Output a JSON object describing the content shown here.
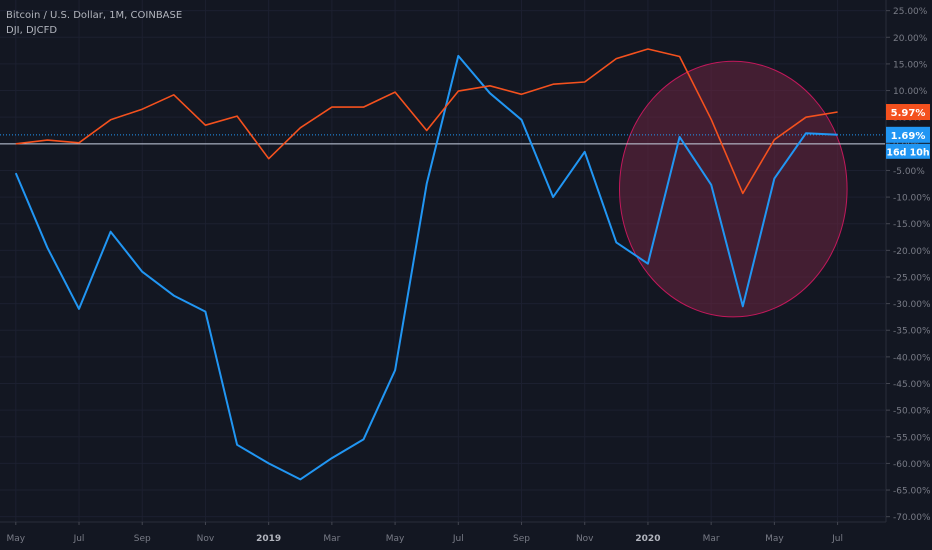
{
  "legend": {
    "line1": "Bitcoin / U.S. Dollar, 1M, COINBASE",
    "line2": "DJI, DJCFD"
  },
  "chart_data": {
    "type": "line",
    "x_labels": [
      "May",
      "Jul",
      "Sep",
      "Nov",
      "2019",
      "Mar",
      "May",
      "Jul",
      "Sep",
      "Nov",
      "2020",
      "Mar",
      "May",
      "Jul"
    ],
    "x_label_bold": [
      "2019",
      "2020"
    ],
    "y_ticks": [
      25,
      20,
      15,
      10,
      5,
      0,
      -5,
      -10,
      -15,
      -20,
      -25,
      -30,
      -35,
      -40,
      -45,
      -50,
      -55,
      -60,
      -65,
      -70
    ],
    "y_tick_labels": [
      "25.00%",
      "20.00%",
      "15.00%",
      "10.00%",
      "5.00%",
      "0.00%",
      "-5.00%",
      "-10.00%",
      "-15.00%",
      "-20.00%",
      "-25.00%",
      "-30.00%",
      "-35.00%",
      "-40.00%",
      "-45.00%",
      "-50.00%",
      "-55.00%",
      "-60.00%",
      "-65.00%",
      "-70.00%"
    ],
    "ylim": [
      -71,
      27
    ],
    "xlim": [
      -0.5,
      27.5
    ],
    "series": [
      {
        "color": "#2196f3",
        "x": [
          0,
          1,
          2,
          3,
          4,
          5,
          6,
          7,
          8,
          9,
          10,
          11,
          12,
          13,
          14,
          15,
          16,
          17,
          18,
          19,
          20,
          21,
          22,
          23,
          24,
          25,
          26
        ],
        "values": [
          -5.5,
          -19.5,
          -31,
          -16.5,
          -24,
          -28.5,
          -31.5,
          -56.5,
          -60,
          -63,
          -59,
          -55.5,
          -42.5,
          -7.5,
          16.5,
          9.5,
          4.5,
          -10,
          -1.5,
          -18.5,
          -22.5,
          1.3,
          -7.7,
          -30.5,
          -6.5,
          2.0,
          1.69
        ]
      },
      {
        "color": "#f4511e",
        "x": [
          0,
          1,
          2,
          3,
          4,
          5,
          6,
          7,
          8,
          9,
          10,
          11,
          12,
          13,
          14,
          15,
          16,
          17,
          18,
          19,
          20,
          21,
          22,
          23,
          24,
          25,
          26
        ],
        "values": [
          0,
          0.7,
          0.2,
          4.5,
          6.5,
          9.2,
          3.5,
          5.2,
          -2.8,
          3.0,
          6.9,
          6.9,
          9.7,
          2.5,
          9.9,
          10.9,
          9.3,
          11.2,
          11.6,
          16.0,
          17.8,
          16.4,
          4.6,
          -9.3,
          0.8,
          5.0,
          5.97
        ]
      }
    ],
    "price_tags": [
      {
        "label": "5.97%",
        "value": 5.97,
        "color": "#f4511e"
      },
      {
        "label": "1.69%",
        "value": 1.69,
        "color": "#2196f3"
      }
    ],
    "countdown": {
      "label": "16d 10h",
      "color": "#2196f3"
    },
    "reference_lines": [
      {
        "value": 1.69,
        "color": "#2196f3",
        "style": "dotted"
      },
      {
        "value": 0,
        "color": "#c8d0e0",
        "style": "solid"
      }
    ],
    "highlight_ellipse": {
      "cx": 22.7,
      "cy": -8.5,
      "rx_months": 3.6,
      "ry_value": 24,
      "fill": "#6b2540",
      "stroke": "#c2185b"
    }
  }
}
